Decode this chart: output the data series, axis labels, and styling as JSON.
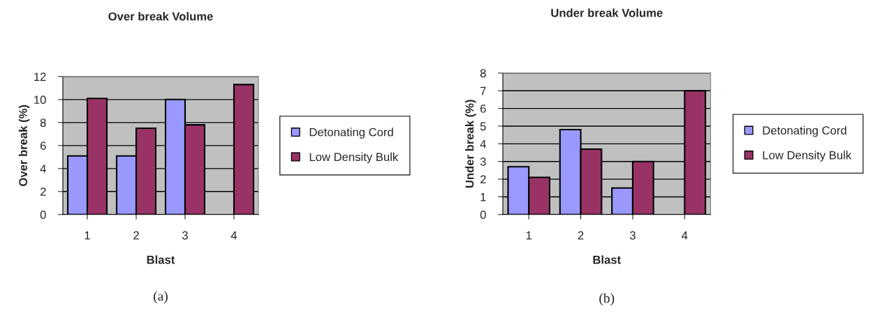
{
  "chart_data": [
    {
      "type": "bar",
      "title": "Over break Volume",
      "xlabel": "Blast",
      "ylabel": "Over break (%)",
      "categories": [
        "1",
        "2",
        "3",
        "4"
      ],
      "series": [
        {
          "name": "Detonating Cord",
          "color": "#9999ff",
          "values": [
            5.1,
            5.1,
            10.0,
            null
          ]
        },
        {
          "name": "Low Density Bulk",
          "color": "#993366",
          "values": [
            10.1,
            7.5,
            7.8,
            11.3
          ]
        }
      ],
      "ylim": [
        0,
        12
      ],
      "yticks": [
        0,
        2,
        4,
        6,
        8,
        10,
        12
      ],
      "grid": "y",
      "legend": "right",
      "annotations": [
        "(a)"
      ]
    },
    {
      "type": "bar",
      "title": "Under break Volume",
      "xlabel": "Blast",
      "ylabel": "Under break (%)",
      "categories": [
        "1",
        "2",
        "3",
        "4"
      ],
      "series": [
        {
          "name": "Detonating Cord",
          "color": "#9999ff",
          "values": [
            2.7,
            4.8,
            1.5,
            null
          ]
        },
        {
          "name": "Low Density Bulk",
          "color": "#993366",
          "values": [
            2.1,
            3.7,
            3.0,
            7.0
          ]
        }
      ],
      "ylim": [
        0,
        8
      ],
      "yticks": [
        0,
        1,
        2,
        3,
        4,
        5,
        6,
        7,
        8
      ],
      "grid": "y",
      "legend": "right",
      "annotations": [
        "(b)"
      ]
    }
  ]
}
